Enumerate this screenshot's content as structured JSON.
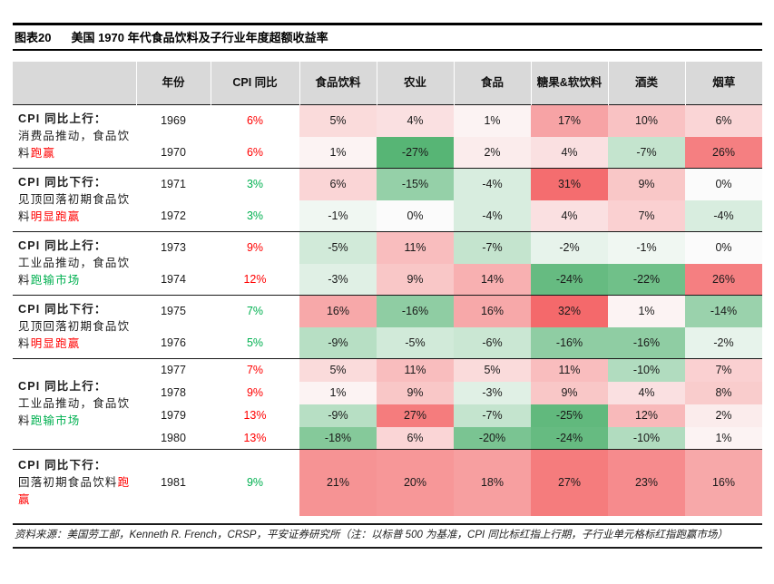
{
  "header": {
    "figure_label": "图表20",
    "title": "美国 1970 年代食品饮料及子行业年度超额收益率"
  },
  "footnote": "资料来源：美国劳工部，Kenneth R. French，CRSP，平安证券研究所（注：以标普 500 为基准，CPI 同比标红指上行期，子行业单元格标红指跑赢市场）",
  "colors": {
    "cpi_up": "#ff0000",
    "cpi_down": "#00b050",
    "label_highlight_red": "#ff0000",
    "label_highlight_green": "#00b050",
    "header_bg": "#d9d9d9",
    "heat_positive_max": "#f4696b",
    "heat_negative_max": "#57b575"
  },
  "chart_data": {
    "type": "heatmap-table",
    "title": "美国 1970 年代食品饮料及子行业年度超额收益率",
    "unit": "%",
    "columns": [
      "年份",
      "CPI 同比",
      "食品饮料",
      "农业",
      "食品",
      "糖果&软饮料",
      "酒类",
      "烟草"
    ],
    "value_columns": [
      "食品饮料",
      "农业",
      "食品",
      "糖果&软饮料",
      "酒类",
      "烟草"
    ],
    "color_scale": {
      "positive": "#f4696b",
      "negative": "#57b575",
      "zero": "#fbfbfb",
      "max_positive": 32,
      "max_negative": -27
    },
    "groups": [
      {
        "label_bold": "CPI 同比上行：",
        "label_text": "消费品推动，食品饮料",
        "label_highlight": "跑赢",
        "highlight_color": "#ff0000",
        "rows": [
          {
            "year": "1969",
            "cpi": 6,
            "cpi_trend": "up",
            "values": [
              5,
              4,
              1,
              17,
              10,
              6
            ]
          },
          {
            "year": "1970",
            "cpi": 6,
            "cpi_trend": "up",
            "values": [
              1,
              -27,
              2,
              4,
              -7,
              26
            ]
          }
        ]
      },
      {
        "label_bold": "CPI 同比下行：",
        "label_text": "见顶回落初期食品饮料",
        "label_highlight": "明显跑赢",
        "highlight_color": "#ff0000",
        "rows": [
          {
            "year": "1971",
            "cpi": 3,
            "cpi_trend": "down",
            "values": [
              6,
              -15,
              -4,
              31,
              9,
              0
            ]
          },
          {
            "year": "1972",
            "cpi": 3,
            "cpi_trend": "down",
            "values": [
              -1,
              0,
              -4,
              4,
              7,
              -4
            ]
          }
        ]
      },
      {
        "label_bold": "CPI 同比上行：",
        "label_text": "工业品推动，食品饮料",
        "label_highlight": "跑输市场",
        "highlight_color": "#00b050",
        "rows": [
          {
            "year": "1973",
            "cpi": 9,
            "cpi_trend": "up",
            "values": [
              -5,
              11,
              -7,
              -2,
              -1,
              0
            ]
          },
          {
            "year": "1974",
            "cpi": 12,
            "cpi_trend": "up",
            "values": [
              -3,
              9,
              14,
              -24,
              -22,
              26
            ]
          }
        ]
      },
      {
        "label_bold": "CPI 同比下行：",
        "label_text": "见顶回落初期食品饮料",
        "label_highlight": "明显跑赢",
        "highlight_color": "#ff0000",
        "rows": [
          {
            "year": "1975",
            "cpi": 7,
            "cpi_trend": "down",
            "values": [
              16,
              -16,
              16,
              32,
              1,
              -14
            ]
          },
          {
            "year": "1976",
            "cpi": 5,
            "cpi_trend": "down",
            "values": [
              -9,
              -5,
              -6,
              -16,
              -16,
              -2
            ]
          }
        ]
      },
      {
        "label_bold": "CPI 同比上行：",
        "label_text": "工业品推动，食品饮料",
        "label_highlight": "跑输市场",
        "highlight_color": "#00b050",
        "rows": [
          {
            "year": "1977",
            "cpi": 7,
            "cpi_trend": "up",
            "values": [
              5,
              11,
              5,
              11,
              -10,
              7
            ]
          },
          {
            "year": "1978",
            "cpi": 9,
            "cpi_trend": "up",
            "values": [
              1,
              9,
              -3,
              9,
              4,
              8
            ]
          },
          {
            "year": "1979",
            "cpi": 13,
            "cpi_trend": "up",
            "values": [
              -9,
              27,
              -7,
              -25,
              12,
              2
            ]
          },
          {
            "year": "1980",
            "cpi": 13,
            "cpi_trend": "up",
            "values": [
              -18,
              6,
              -20,
              -24,
              -10,
              1
            ]
          }
        ]
      },
      {
        "label_bold": "CPI 同比下行：",
        "label_text": "回落初期食品饮料",
        "label_highlight": "跑赢",
        "highlight_color": "#ff0000",
        "rows": [
          {
            "year": "1981",
            "cpi": 9,
            "cpi_trend": "down",
            "values": [
              21,
              20,
              18,
              27,
              23,
              16
            ]
          }
        ]
      }
    ]
  }
}
